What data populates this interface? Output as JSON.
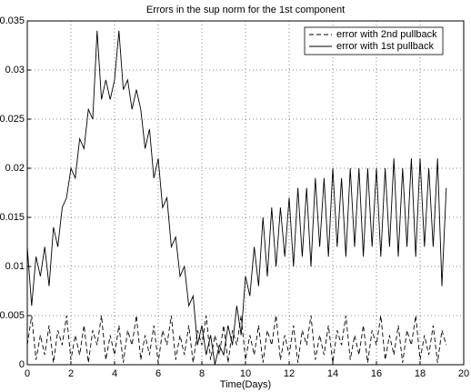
{
  "chart_data": {
    "type": "line",
    "title": "Errors in the sup norm for the 1st component",
    "xlabel": "Time(Days)",
    "x": [
      0,
      0.2,
      0.4,
      0.6,
      0.8,
      1,
      1.2,
      1.4,
      1.6,
      1.8,
      2,
      2.2,
      2.4,
      2.6,
      2.8,
      3,
      3.2,
      3.4,
      3.6,
      3.8,
      4,
      4.2,
      4.4,
      4.6,
      4.8,
      5,
      5.2,
      5.4,
      5.6,
      5.8,
      6,
      6.2,
      6.4,
      6.6,
      6.8,
      7,
      7.2,
      7.4,
      7.6,
      7.8,
      8,
      8.2,
      8.4,
      8.6,
      8.8,
      9,
      9.2,
      9.4,
      9.6,
      9.8,
      10,
      10.2,
      10.4,
      10.6,
      10.8,
      11,
      11.2,
      11.4,
      11.6,
      11.8,
      12,
      12.2,
      12.4,
      12.6,
      12.8,
      13,
      13.2,
      13.4,
      13.6,
      13.8,
      14,
      14.2,
      14.4,
      14.6,
      14.8,
      15,
      15.2,
      15.4,
      15.6,
      15.8,
      16,
      16.2,
      16.4,
      16.6,
      16.8,
      17,
      17.2,
      17.4,
      17.6,
      17.8,
      18,
      18.2,
      18.4,
      18.6,
      18.8,
      19,
      19.2
    ],
    "series": [
      {
        "name": "error with 2nd pullback",
        "color": "#000000",
        "linestyle": "dashed",
        "values": [
          0.002,
          0.005,
          0.0005,
          0.003,
          0.001,
          0.004,
          0.0002,
          0.0035,
          0.002,
          0.005,
          0.0005,
          0.003,
          0.001,
          0.004,
          0.0002,
          0.0035,
          0.002,
          0.005,
          0.0005,
          0.003,
          0.001,
          0.004,
          0.0002,
          0.0035,
          0.002,
          0.005,
          0.0005,
          0.003,
          0.001,
          0.004,
          0.0002,
          0.0035,
          0.002,
          0.005,
          0.0005,
          0.003,
          0.001,
          0.004,
          0.0002,
          0.0035,
          0.002,
          0.005,
          0.0005,
          0.003,
          0.001,
          0.004,
          0.0002,
          0.0035,
          0.002,
          0.005,
          0.0005,
          0.003,
          0.001,
          0.004,
          0.0002,
          0.0035,
          0.002,
          0.005,
          0.0005,
          0.003,
          0.001,
          0.004,
          0.0002,
          0.0035,
          0.002,
          0.005,
          0.0005,
          0.003,
          0.001,
          0.004,
          0.0002,
          0.0035,
          0.002,
          0.005,
          0.0005,
          0.003,
          0.001,
          0.004,
          0.0002,
          0.0035,
          0.002,
          0.005,
          0.0005,
          0.003,
          0.001,
          0.004,
          0.0002,
          0.0035,
          0.002,
          0.005,
          0.0005,
          0.003,
          0.001,
          0.004,
          0.0002,
          0.0035,
          0.002
        ]
      },
      {
        "name": "error with 1st pullback",
        "color": "#000000",
        "linestyle": "solid",
        "values": [
          0.012,
          0.006,
          0.011,
          0.009,
          0.012,
          0.008,
          0.014,
          0.012,
          0.016,
          0.017,
          0.02,
          0.019,
          0.023,
          0.022,
          0.026,
          0.025,
          0.034,
          0.027,
          0.029,
          0.027,
          0.029,
          0.034,
          0.028,
          0.029,
          0.026,
          0.028,
          0.026,
          0.022,
          0.024,
          0.019,
          0.021,
          0.016,
          0.017,
          0.012,
          0.013,
          0.009,
          0.01,
          0.006,
          0.007,
          0.002,
          0.004,
          0.001,
          0.003,
          0,
          0.002,
          0.001,
          0.004,
          0.002,
          0.006,
          0.003,
          0.009,
          0.007,
          0.012,
          0.008,
          0.015,
          0.009,
          0.016,
          0.01,
          0.016,
          0.011,
          0.017,
          0.01,
          0.018,
          0.011,
          0.018,
          0.01,
          0.019,
          0.012,
          0.019,
          0.011,
          0.02,
          0.012,
          0.019,
          0.011,
          0.02,
          0.012,
          0.02,
          0.011,
          0.02,
          0.012,
          0.02,
          0.011,
          0.02,
          0.012,
          0.021,
          0.011,
          0.02,
          0.012,
          0.021,
          0.011,
          0.021,
          0.012,
          0.02,
          0.012,
          0.021,
          0.008,
          0.018
        ]
      }
    ],
    "xlim": [
      0,
      20
    ],
    "xticks": [
      0,
      2,
      4,
      6,
      8,
      10,
      12,
      14,
      16,
      18,
      20
    ],
    "ylim": [
      0,
      0.035
    ],
    "yticks": [
      0,
      0.005,
      0.01,
      0.015,
      0.02,
      0.025,
      0.03,
      0.035
    ],
    "grid": true,
    "legend": "upper right"
  }
}
